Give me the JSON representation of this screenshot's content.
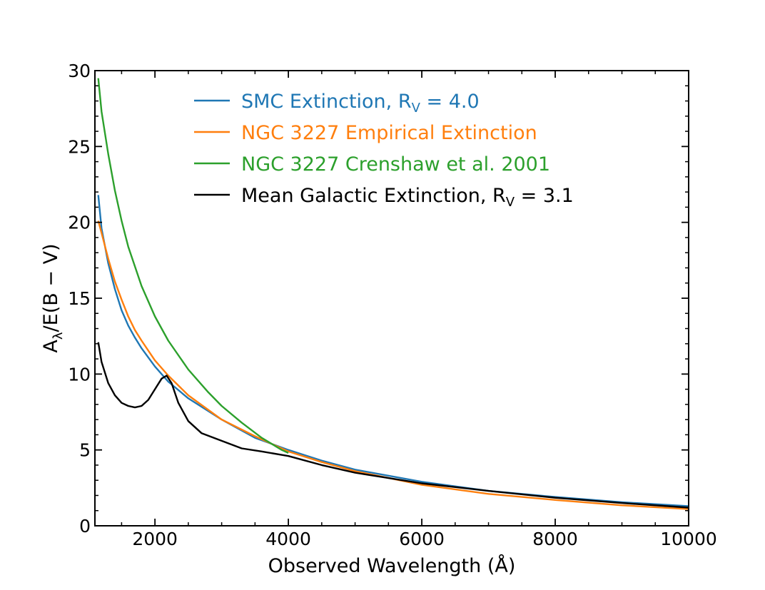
{
  "chart_data": {
    "type": "line",
    "title": "",
    "xlabel": "Observed Wavelength (Å)",
    "ylabel_main": "A",
    "ylabel_sub": "λ",
    "ylabel_rest": "/E(B − V)",
    "xlim": [
      1100,
      10000
    ],
    "ylim": [
      0,
      30
    ],
    "grid": false,
    "legend_position": "top",
    "x_ticks": [
      2000,
      4000,
      6000,
      8000,
      10000
    ],
    "x_tick_labels": [
      "2000",
      "4000",
      "6000",
      "8000",
      "10000"
    ],
    "y_ticks": [
      0,
      5,
      10,
      15,
      20,
      25,
      30
    ],
    "y_tick_labels": [
      "0",
      "5",
      "10",
      "15",
      "20",
      "25",
      "30"
    ],
    "series": [
      {
        "name": "SMC Extinction, R",
        "name_sub": "V",
        "name_tail": " = 4.0",
        "color": "#1f77b4",
        "x": [
          1150,
          1200,
          1300,
          1400,
          1500,
          1600,
          1700,
          1800,
          2000,
          2200,
          2500,
          3000,
          3500,
          4000,
          4500,
          5000,
          6000,
          7000,
          8000,
          9000,
          10000
        ],
        "y": [
          21.8,
          19.6,
          17.3,
          15.6,
          14.2,
          13.2,
          12.4,
          11.7,
          10.5,
          9.5,
          8.4,
          7.0,
          5.8,
          5.0,
          4.3,
          3.7,
          2.9,
          2.3,
          1.9,
          1.55,
          1.3
        ]
      },
      {
        "name": "NGC 3227 Empirical Extinction",
        "name_sub": "",
        "name_tail": "",
        "color": "#ff7f0e",
        "x": [
          1150,
          1200,
          1300,
          1400,
          1500,
          1600,
          1700,
          1800,
          2000,
          2200,
          2500,
          3000,
          3500,
          4000,
          4500,
          5000,
          6000,
          7000,
          8000,
          9000,
          10000
        ],
        "y": [
          20.1,
          19.3,
          17.6,
          16.1,
          14.9,
          13.8,
          12.9,
          12.2,
          10.9,
          9.9,
          8.6,
          7.0,
          5.9,
          4.9,
          4.2,
          3.6,
          2.7,
          2.1,
          1.7,
          1.35,
          1.1
        ]
      },
      {
        "name": "NGC 3227 Crenshaw et al. 2001",
        "name_sub": "",
        "name_tail": "",
        "color": "#2ca02c",
        "x": [
          1150,
          1200,
          1300,
          1400,
          1500,
          1600,
          1800,
          2000,
          2200,
          2500,
          2800,
          3000,
          3300,
          3600,
          3900,
          4000
        ],
        "y": [
          29.5,
          27.3,
          24.5,
          22.1,
          20.1,
          18.4,
          15.8,
          13.8,
          12.2,
          10.3,
          8.8,
          7.9,
          6.8,
          5.8,
          5.0,
          4.8
        ]
      },
      {
        "name": "Mean Galactic Extinction, R",
        "name_sub": "V",
        "name_tail": " = 3.1",
        "color": "#000000",
        "x": [
          1150,
          1200,
          1300,
          1400,
          1500,
          1600,
          1700,
          1800,
          1900,
          2000,
          2100,
          2175,
          2250,
          2350,
          2500,
          2700,
          3000,
          3300,
          3600,
          4000,
          4500,
          5000,
          6000,
          7000,
          8000,
          9000,
          10000
        ],
        "y": [
          12.1,
          10.8,
          9.4,
          8.6,
          8.1,
          7.9,
          7.8,
          7.9,
          8.3,
          9.0,
          9.7,
          9.9,
          9.4,
          8.1,
          6.9,
          6.1,
          5.6,
          5.1,
          4.9,
          4.6,
          4.0,
          3.5,
          2.8,
          2.3,
          1.85,
          1.5,
          1.2
        ]
      }
    ]
  }
}
